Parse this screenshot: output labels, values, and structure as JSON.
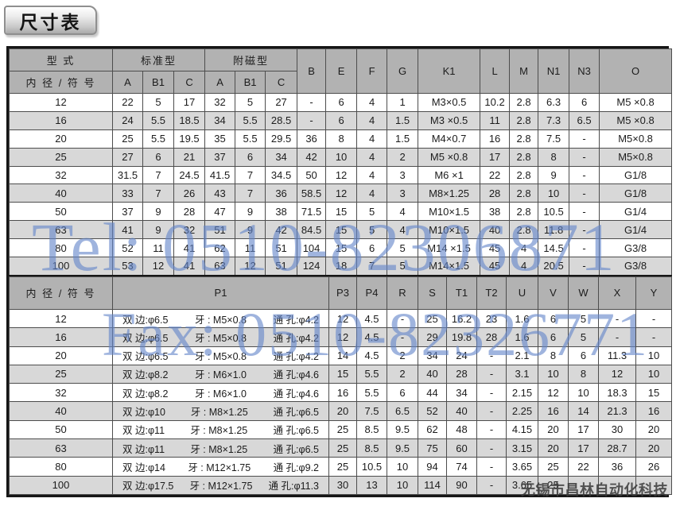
{
  "title_tab": {
    "label": "尺寸表"
  },
  "watermarks": {
    "tel": "Tel: 0510-82306871",
    "fax": "Fax: 0510-82326771",
    "company": "无锡市昌林自动化科技",
    "accent_color": "#6486ca"
  },
  "colors": {
    "header_bg": "#b2b2b2",
    "row_shade": "#d8d8d8",
    "grid_line": "#4d4d4d",
    "outer_border": "#161616"
  },
  "table1": {
    "header": {
      "type_label": "型 式",
      "bore_label": "内 径 / 符 号",
      "standard_label": "标准型",
      "magnetic_label": "附磁型",
      "sub_cols": [
        "A",
        "B1",
        "C",
        "A",
        "B1",
        "C"
      ],
      "cols": [
        "B",
        "E",
        "F",
        "G",
        "K1",
        "L",
        "M",
        "N1",
        "N3",
        "O"
      ]
    },
    "rows": [
      {
        "bore": "12",
        "values": [
          "22",
          "5",
          "17",
          "32",
          "5",
          "27",
          "-",
          "6",
          "4",
          "1",
          "M3×0.5",
          "10.2",
          "2.8",
          "6.3",
          "6",
          "M5 ×0.8"
        ]
      },
      {
        "bore": "16",
        "values": [
          "24",
          "5.5",
          "18.5",
          "34",
          "5.5",
          "28.5",
          "-",
          "6",
          "4",
          "1.5",
          "M3 ×0.5",
          "11",
          "2.8",
          "7.3",
          "6.5",
          "M5 ×0.8"
        ]
      },
      {
        "bore": "20",
        "values": [
          "25",
          "5.5",
          "19.5",
          "35",
          "5.5",
          "29.5",
          "36",
          "8",
          "4",
          "1.5",
          "M4×0.7",
          "16",
          "2.8",
          "7.5",
          "-",
          "M5×0.8"
        ]
      },
      {
        "bore": "25",
        "values": [
          "27",
          "6",
          "21",
          "37",
          "6",
          "34",
          "42",
          "10",
          "4",
          "2",
          "M5 ×0.8",
          "17",
          "2.8",
          "8",
          "-",
          "M5×0.8"
        ]
      },
      {
        "bore": "32",
        "values": [
          "31.5",
          "7",
          "24.5",
          "41.5",
          "7",
          "34.5",
          "50",
          "12",
          "4",
          "3",
          "M6 ×1",
          "22",
          "2.8",
          "9",
          "-",
          "G1/8"
        ]
      },
      {
        "bore": "40",
        "values": [
          "33",
          "7",
          "26",
          "43",
          "7",
          "36",
          "58.5",
          "12",
          "4",
          "3",
          "M8×1.25",
          "28",
          "2.8",
          "10",
          "-",
          "G1/8"
        ]
      },
      {
        "bore": "50",
        "values": [
          "37",
          "9",
          "28",
          "47",
          "9",
          "38",
          "71.5",
          "15",
          "5",
          "4",
          "M10×1.5",
          "38",
          "2.8",
          "10.5",
          "-",
          "G1/4"
        ]
      },
      {
        "bore": "63",
        "values": [
          "41",
          "9",
          "32",
          "51",
          "9",
          "42",
          "84.5",
          "15",
          "5",
          "4",
          "M10×1.5",
          "40",
          "2.8",
          "11.8",
          "-",
          "G1/4"
        ]
      },
      {
        "bore": "80",
        "values": [
          "52",
          "11",
          "41",
          "62",
          "11",
          "51",
          "104",
          "15",
          "6",
          "5",
          "M14 ×1.5",
          "45",
          "4",
          "14.5",
          "-",
          "G3/8"
        ]
      },
      {
        "bore": "100",
        "values": [
          "53",
          "12",
          "41",
          "63",
          "12",
          "51",
          "124",
          "18",
          "7",
          "5",
          "M14×1.5",
          "45",
          "4",
          "20.5",
          "-",
          "G3/8"
        ]
      }
    ]
  },
  "table2": {
    "header": {
      "bore_label": "内 径 / 符 号",
      "p1_label": "P1",
      "cols": [
        "P3",
        "P4",
        "R",
        "S",
        "T1",
        "T2",
        "U",
        "V",
        "W",
        "X",
        "Y"
      ]
    },
    "rows": [
      {
        "bore": "12",
        "p1": {
          "side": "双 边:φ6.5",
          "thread": "牙 : M5×0.8",
          "hole": "通 孔:φ4.2"
        },
        "values": [
          "12",
          "4.5",
          "-",
          "25",
          "16.2",
          "23",
          "1.6",
          "6",
          "5",
          "-",
          "-"
        ]
      },
      {
        "bore": "16",
        "p1": {
          "side": "双 边:φ6.5",
          "thread": "牙 : M5×0.8",
          "hole": "通 孔:φ4.2"
        },
        "values": [
          "12",
          "4.5",
          "-",
          "29",
          "19.8",
          "28",
          "1.6",
          "6",
          "5",
          "-",
          "-"
        ]
      },
      {
        "bore": "20",
        "p1": {
          "side": "双 边:φ6.5",
          "thread": "牙 : M5×0.8",
          "hole": "通 孔:φ4.2"
        },
        "values": [
          "14",
          "4.5",
          "2",
          "34",
          "24",
          "-",
          "2.1",
          "8",
          "6",
          "11.3",
          "10"
        ]
      },
      {
        "bore": "25",
        "p1": {
          "side": "双 边:φ8.2",
          "thread": "牙 : M6×1.0",
          "hole": "通 孔:φ4.6"
        },
        "values": [
          "15",
          "5.5",
          "2",
          "40",
          "28",
          "-",
          "3.1",
          "10",
          "8",
          "12",
          "10"
        ]
      },
      {
        "bore": "32",
        "p1": {
          "side": "双 边:φ8.2",
          "thread": "牙 : M6×1.0",
          "hole": "通 孔:φ4.6"
        },
        "values": [
          "16",
          "5.5",
          "6",
          "44",
          "34",
          "-",
          "2.15",
          "12",
          "10",
          "18.3",
          "15"
        ]
      },
      {
        "bore": "40",
        "p1": {
          "side": "双 边:φ10",
          "thread": "牙 : M8×1.25",
          "hole": "通 孔:φ6.5"
        },
        "values": [
          "20",
          "7.5",
          "6.5",
          "52",
          "40",
          "-",
          "2.25",
          "16",
          "14",
          "21.3",
          "16"
        ]
      },
      {
        "bore": "50",
        "p1": {
          "side": "双 边:φ11",
          "thread": "牙 : M8×1.25",
          "hole": "通 孔:φ6.5"
        },
        "values": [
          "25",
          "8.5",
          "9.5",
          "62",
          "48",
          "-",
          "4.15",
          "20",
          "17",
          "30",
          "20"
        ]
      },
      {
        "bore": "63",
        "p1": {
          "side": "双 边:φ11",
          "thread": "牙 : M8×1.25",
          "hole": "通 孔:φ6.5"
        },
        "values": [
          "25",
          "8.5",
          "9.5",
          "75",
          "60",
          "-",
          "3.15",
          "20",
          "17",
          "28.7",
          "20"
        ]
      },
      {
        "bore": "80",
        "p1": {
          "side": "双 边:φ14",
          "thread": "牙 : M12×1.75",
          "hole": "通 孔:φ9.2"
        },
        "values": [
          "25",
          "10.5",
          "10",
          "94",
          "74",
          "-",
          "3.65",
          "25",
          "22",
          "36",
          "26"
        ]
      },
      {
        "bore": "100",
        "p1": {
          "side": "双 边:φ17.5",
          "thread": "牙 : M12×1.75",
          "hole": "通 孔:φ11.3"
        },
        "values": [
          "30",
          "13",
          "10",
          "114",
          "90",
          "-",
          "3.65",
          "25",
          "",
          "",
          ""
        ]
      }
    ]
  }
}
